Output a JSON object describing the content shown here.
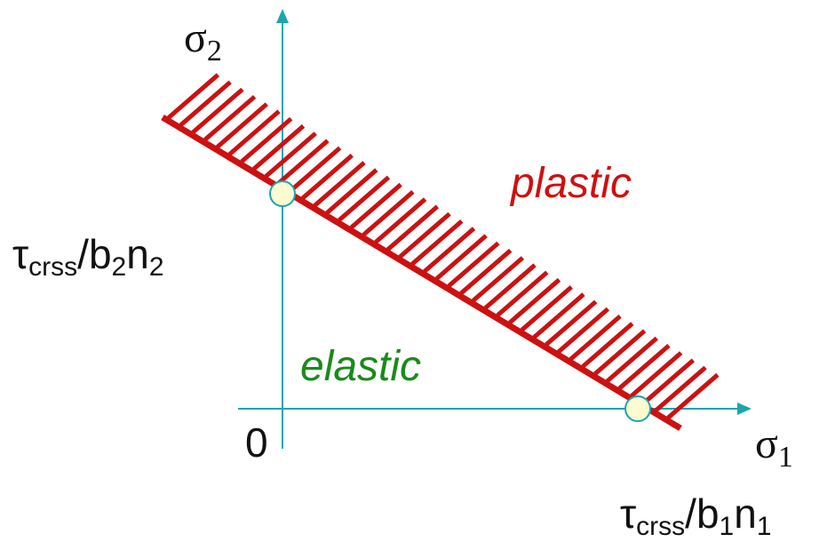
{
  "diagram": {
    "colors": {
      "axis": "#1aa6ad",
      "boundary": "#cc1111",
      "plastic_text": "#cc1111",
      "elastic_text": "#1a8a1a",
      "label_text": "#111111",
      "marker_fill": "#fdfbd0",
      "marker_stroke": "#1aa6ad"
    },
    "axis_labels": {
      "y": {
        "symbol": "σ",
        "subscript": "2"
      },
      "x": {
        "symbol": "σ",
        "subscript": "1"
      }
    },
    "origin_label": "0",
    "y_intercept_label": {
      "tau": "τ",
      "tau_sub": "crss",
      "slash_b": "/b",
      "b_sub": "2",
      "n": "n",
      "n_sub": "2"
    },
    "x_intercept_label": {
      "tau": "τ",
      "tau_sub": "crss",
      "slash_b": "/b",
      "b_sub": "1",
      "n": "n",
      "n_sub": "1"
    },
    "region_labels": {
      "plastic": "plastic",
      "elastic": "elastic"
    }
  }
}
